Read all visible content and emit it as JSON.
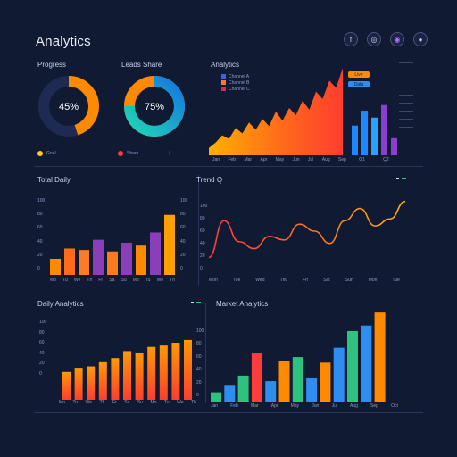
{
  "app": {
    "title": "Analytics"
  },
  "top_icons": [
    {
      "name": "facebook-icon",
      "glyph": "f",
      "color": "#c9d1ea"
    },
    {
      "name": "instagram-icon",
      "glyph": "◎",
      "color": "#c9d1ea"
    },
    {
      "name": "record-icon",
      "glyph": "◉",
      "color": "#b86bff"
    },
    {
      "name": "globe-icon",
      "glyph": "●",
      "color": "#cfd6ee"
    }
  ],
  "panels": {
    "donut1": {
      "title": "Progress",
      "value_label": "45%",
      "percent": 45,
      "legend_label": "Goal",
      "color": "#ff8a00",
      "legend_color": "#ffcf1a"
    },
    "donut2": {
      "title": "Leads Share",
      "value_label": "75%",
      "percent": 75,
      "legend_label": "Share",
      "color": "#14a8e0",
      "color2": "#1fd6b5",
      "legend_color": "#ff3b3b"
    },
    "area": {
      "title": "Analytics",
      "legend": [
        "Channel A",
        "Channel B",
        "Channel C"
      ],
      "legend_colors": [
        "#3c5cff",
        "#ff7b22",
        "#d9295b"
      ],
      "buttons": [
        {
          "label": "Live",
          "color": "#ff8a00"
        },
        {
          "label": "Data",
          "color": "#2e8ef0"
        }
      ],
      "x_ticks": [
        "Jan",
        "Feb",
        "Mar",
        "Apr",
        "May",
        "Jun",
        "Jul",
        "Aug",
        "Sep"
      ],
      "bars_x_ticks": [
        "Q1",
        "Q2"
      ]
    },
    "bar1": {
      "title": "Total Daily",
      "y_ticks": [
        "100",
        "80",
        "60",
        "40",
        "20",
        "0"
      ],
      "x_ticks": [
        "Mo",
        "Tu",
        "We",
        "Th",
        "Fr",
        "Sa",
        "Su",
        "Mo",
        "Tu",
        "We",
        "Th"
      ]
    },
    "line": {
      "title": "Trend Q",
      "y_ticks": [
        "100",
        "80",
        "60",
        "40",
        "20",
        "0"
      ],
      "x_ticks": [
        "Mon",
        "Tue",
        "Wed",
        "Thu",
        "Fri",
        "Sat",
        "Sun",
        "Mon",
        "Tue"
      ]
    },
    "bar2": {
      "title": "Daily Analytics",
      "y_ticks": [
        "100",
        "80",
        "60",
        "40",
        "20",
        "0"
      ],
      "x_ticks": [
        "Mo",
        "Tu",
        "We",
        "Th",
        "Fr",
        "Sa",
        "Su",
        "Mo",
        "Tu",
        "We",
        "Th",
        "Fr"
      ]
    },
    "bar3": {
      "title": "Market Analytics",
      "y_ticks": [
        "100",
        "80",
        "60",
        "40",
        "20",
        "0"
      ],
      "x_ticks": [
        "Jan",
        "Feb",
        "Mar",
        "Apr",
        "May",
        "Jun",
        "Jul",
        "Aug",
        "Sep",
        "Oct"
      ]
    }
  },
  "chart_data": [
    {
      "type": "pie",
      "values": [
        45,
        55
      ],
      "value_label": "45%"
    },
    {
      "type": "pie",
      "values": [
        75,
        25
      ],
      "value_label": "75%"
    },
    {
      "type": "area",
      "values": [
        8,
        14,
        22,
        18,
        30,
        24,
        36,
        28,
        40,
        32,
        48,
        38,
        52,
        44,
        60,
        50,
        70,
        62,
        82,
        74,
        96
      ],
      "ylim": [
        0,
        100
      ]
    },
    {
      "type": "bar",
      "values": [
        52,
        78,
        66,
        88
      ],
      "colors": [
        "#1e88ff",
        "#1e88ff",
        "#2aa0ff",
        "#8a3fd1"
      ],
      "extra": [
        30
      ],
      "ylim": [
        0,
        100
      ]
    },
    {
      "type": "bar",
      "values": [
        22,
        36,
        34,
        48,
        32,
        44,
        40,
        58,
        82
      ],
      "ylim": [
        0,
        100
      ]
    },
    {
      "type": "line",
      "y": [
        20,
        62,
        38,
        30,
        44,
        40,
        58,
        50,
        36,
        62,
        76,
        56,
        64,
        84
      ],
      "ylim": [
        0,
        100
      ]
    },
    {
      "type": "bar",
      "values": [
        40,
        46,
        48,
        54,
        60,
        70,
        68,
        76,
        78,
        82,
        86
      ],
      "ylim": [
        0,
        100
      ]
    },
    {
      "type": "bar",
      "series": [
        {
          "values": [
            10,
            18,
            28,
            52,
            22,
            44,
            48,
            26,
            42,
            58,
            76,
            82,
            96
          ]
        }
      ],
      "ylim": [
        0,
        100
      ]
    }
  ]
}
